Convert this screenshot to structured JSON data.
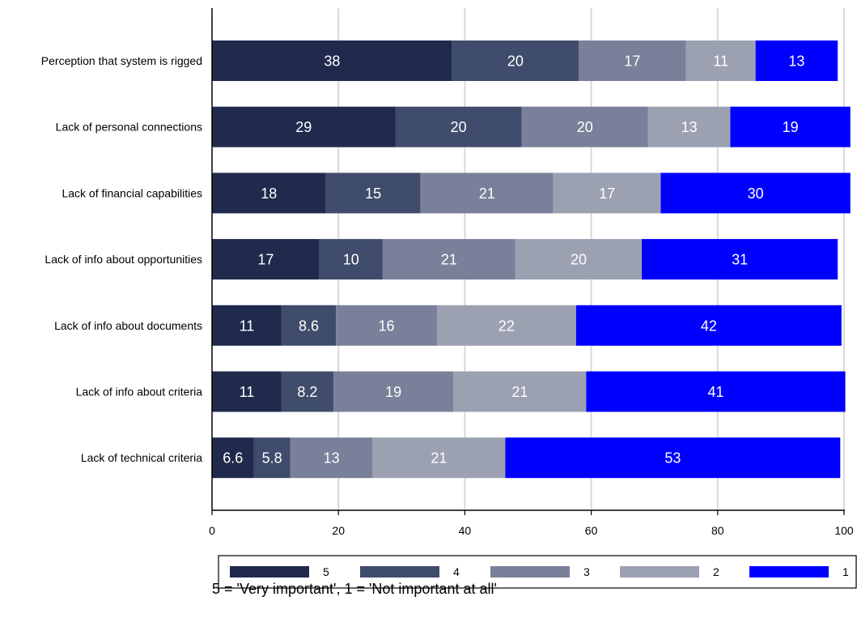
{
  "chart_data": {
    "type": "bar",
    "orientation": "horizontal",
    "stacked": true,
    "categories": [
      "Perception that system is rigged",
      "Lack of personal connections",
      "Lack of financial capabilities",
      "Lack of info about opportunities",
      "Lack of info about documents",
      "Lack of info about criteria",
      "Lack of technical criteria"
    ],
    "series": [
      {
        "name": "5",
        "color": "#1f2a4d",
        "values": [
          38,
          29,
          18,
          17,
          11,
          11,
          6.6
        ],
        "labels": [
          "38",
          "29",
          "18",
          "17",
          "11",
          "11",
          "6.6"
        ]
      },
      {
        "name": "4",
        "color": "#404c6b",
        "values": [
          20,
          20,
          15,
          10,
          8.6,
          8.2,
          5.8
        ],
        "labels": [
          "20",
          "20",
          "15",
          "10",
          "8.6",
          "8.2",
          "5.8"
        ]
      },
      {
        "name": "3",
        "color": "#7a8099",
        "values": [
          17,
          20,
          21,
          21,
          16,
          19,
          13
        ],
        "labels": [
          "17",
          "20",
          "21",
          "21",
          "16",
          "19",
          "13"
        ]
      },
      {
        "name": "2",
        "color": "#9ca1b2",
        "values": [
          11,
          13,
          17,
          20,
          22,
          21,
          21
        ],
        "labels": [
          "11",
          "13",
          "17",
          "20",
          "22",
          "21",
          "21"
        ]
      },
      {
        "name": "1",
        "color": "#0000ff",
        "values": [
          13,
          19,
          30,
          31,
          42,
          41,
          53
        ],
        "labels": [
          "13",
          "19",
          "30",
          "31",
          "42",
          "41",
          "53"
        ]
      }
    ],
    "xlim": [
      0,
      100
    ],
    "xticks": [
      "0",
      "20",
      "40",
      "60",
      "80",
      "100"
    ],
    "grid": "vertical",
    "legend": "bottom",
    "note": "5 = 'Very important', 1 = 'Not important at all'"
  }
}
